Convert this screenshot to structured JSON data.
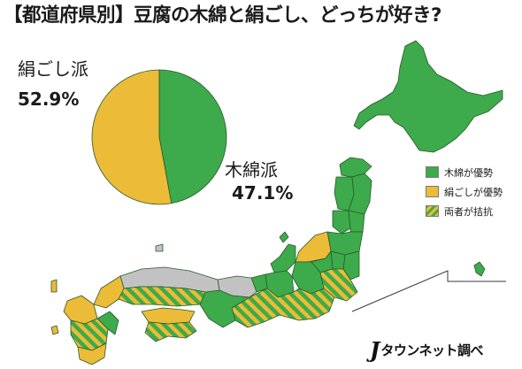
{
  "title": "【都道府県別】豆腐の木綿と絹ごし、どっちが好き?",
  "pie": {
    "kinu_label": "絹ごし派",
    "kinu_pct": "52.9%",
    "momen_label": "木綿派",
    "momen_pct": "47.1%"
  },
  "legend": [
    {
      "label": "木綿が優勢",
      "pattern": "solid-green"
    },
    {
      "label": "絹ごしが優勢",
      "pattern": "solid-yellow"
    },
    {
      "label": "両者が拮抗",
      "pattern": "stripes"
    }
  ],
  "credit": {
    "mark": "J",
    "text": "タウンネット調べ"
  },
  "colors": {
    "green": "#3daa4b",
    "yellow": "#ecbb37",
    "gray": "#c2c2c2",
    "border": "#2f6b2f"
  },
  "chart_data": {
    "type": "pie",
    "categories": [
      "絹ごし派",
      "木綿派"
    ],
    "values": [
      52.9,
      47.1
    ],
    "colors": [
      "#ecbb37",
      "#3daa4b"
    ]
  }
}
